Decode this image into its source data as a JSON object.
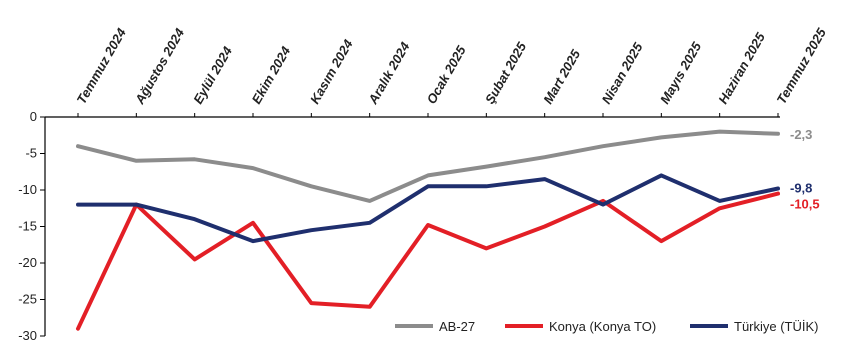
{
  "chart_data": {
    "type": "line",
    "title": "",
    "xlabel": "",
    "ylabel": "",
    "categories": [
      "Temmuz 2024",
      "Ağustos 2024",
      "Eylül 2024",
      "Ekim 2024",
      "Kasım 2024",
      "Aralık 2024",
      "Ocak 2025",
      "Şubat 2025",
      "Mart 2025",
      "Nisan 2025",
      "Mayıs 2025",
      "Haziran 2025",
      "Temmuz 2025"
    ],
    "ylim": [
      -30,
      0
    ],
    "yticks": [
      0,
      -5,
      -10,
      -15,
      -20,
      -25,
      -30
    ],
    "ytick_labels": [
      "0",
      "-5",
      "-10",
      "-15",
      "-20",
      "-25",
      "-30"
    ],
    "x_axis_position": "top",
    "grid": false,
    "legend_position": "bottom-right",
    "series": [
      {
        "name": "AB-27",
        "color": "#8c8c8c",
        "values": [
          -4,
          -6,
          -5.8,
          -7,
          -9.5,
          -11.5,
          -8,
          -6.8,
          -5.5,
          -4,
          -2.8,
          -2,
          -2.3
        ],
        "end_label": "-2,3"
      },
      {
        "name": "Konya (Konya TO)",
        "color": "#e31f26",
        "values": [
          -29,
          -12,
          -19.5,
          -14.5,
          -25.5,
          -26,
          -14.8,
          -18,
          -15,
          -11.5,
          -17,
          -12.5,
          -10.5
        ],
        "end_label": "-10,5"
      },
      {
        "name": "Türkiye (TÜİK)",
        "color": "#1f2f6e",
        "values": [
          -12,
          -12,
          -14,
          -17,
          -15.5,
          -14.5,
          -9.5,
          -9.5,
          -8.5,
          -12,
          -8,
          -11.5,
          -9.8
        ],
        "end_label": "-9,8"
      }
    ]
  }
}
